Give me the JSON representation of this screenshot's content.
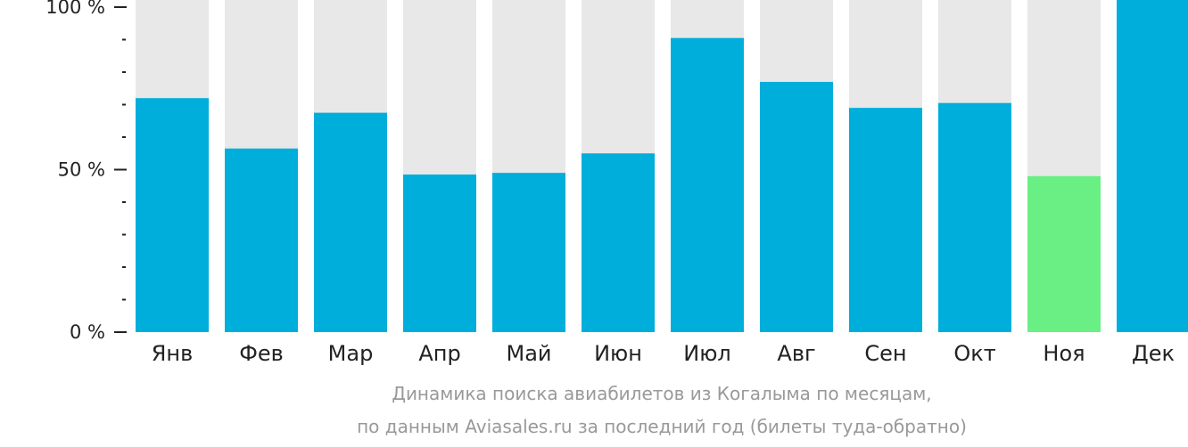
{
  "chart_data": {
    "type": "bar",
    "categories": [
      "Янв",
      "Фев",
      "Мар",
      "Апр",
      "Май",
      "Июн",
      "Июл",
      "Авг",
      "Сен",
      "Окт",
      "Ноя",
      "Дек"
    ],
    "values": [
      72,
      56.5,
      67.5,
      48.5,
      49,
      55,
      90.5,
      77,
      69,
      70.5,
      48,
      100
    ],
    "highlight_index": 10,
    "ylim": [
      0,
      100
    ],
    "yticks": [
      {
        "value": 0,
        "label": "0 %"
      },
      {
        "value": 50,
        "label": "50 %"
      },
      {
        "value": 100,
        "label": "100 %"
      }
    ],
    "minor_tick_step": 10,
    "caption": [
      "Динамика поиска авиабилетов из Когалыма по месяцам,",
      "по данным Aviasales.ru за последний год (билеты туда-обратно)"
    ],
    "colors": {
      "bar": "#00AEDB",
      "highlight": "#6AEF84",
      "background_bar": "#E8E8E8",
      "axis": "#222222",
      "caption": "#999999"
    }
  }
}
